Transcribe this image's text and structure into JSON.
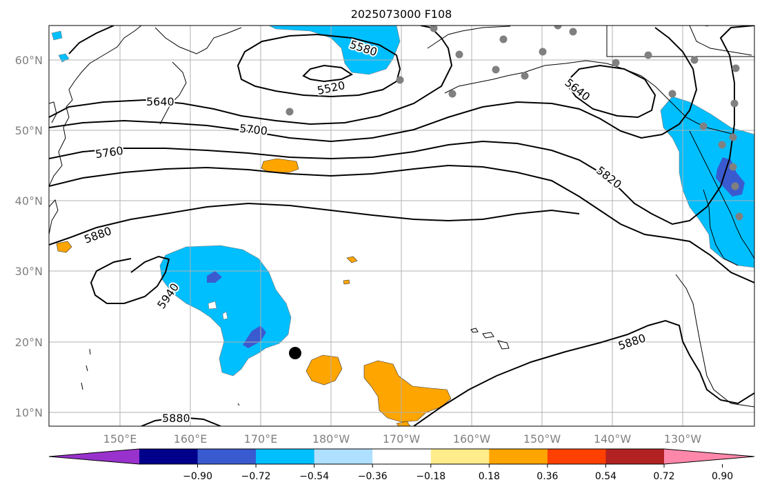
{
  "title": "2025073000 F108",
  "lon_labels": [
    "150°E",
    "160°E",
    "170°E",
    "180°W",
    "170°W",
    "160°W",
    "150°W",
    "140°W",
    "130°W"
  ],
  "lat_labels": [
    "60°N",
    "50°N",
    "40°N",
    "30°N",
    "20°N",
    "10°N"
  ],
  "contour_labels": [
    {
      "id": "5580",
      "text": "5580"
    },
    {
      "id": "5520",
      "text": "5520"
    },
    {
      "id": "5640a",
      "text": "5640"
    },
    {
      "id": "5640b",
      "text": "5640"
    },
    {
      "id": "5700",
      "text": "5700"
    },
    {
      "id": "5760",
      "text": "5760"
    },
    {
      "id": "5820",
      "text": "5820"
    },
    {
      "id": "5880a",
      "text": "5880"
    },
    {
      "id": "5880b",
      "text": "5880"
    },
    {
      "id": "5880c",
      "text": "5880"
    },
    {
      "id": "5940",
      "text": "5940"
    }
  ],
  "colorbar": {
    "colors": [
      "#9932cc",
      "#00008b",
      "#3a5bd0",
      "#00bfff",
      "#b0e0ff",
      "#ffffff",
      "#ffec8b",
      "#ffa500",
      "#ff4000",
      "#b22222",
      "#ff88aa"
    ],
    "ticks": [
      "−0.90",
      "−0.72",
      "−0.54",
      "−0.36",
      "−0.18",
      "0.18",
      "0.36",
      "0.54",
      "0.72",
      "0.90"
    ]
  },
  "colors": {
    "neg_light": "#00bfff",
    "neg_dark": "#3a5bd0",
    "pos": "#ffa500",
    "station": "#808080"
  }
}
